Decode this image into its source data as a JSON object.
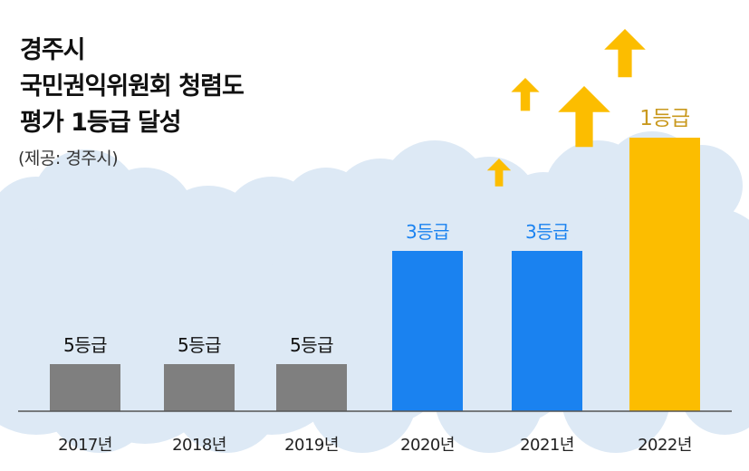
{
  "title_lines": [
    "경주시",
    "국민권익위원회 청렴도",
    "평가 1등급 달성"
  ],
  "source": "(제공: 경주시)",
  "colors": {
    "low": "#7f7f7f",
    "mid": "#1a82f0",
    "top": "#fcbd00",
    "top_label": "#c9991e",
    "arrow": "#fcbd00",
    "cloud": "#dde9f5",
    "axis": "#555555"
  },
  "chart_data": {
    "type": "bar",
    "categories": [
      "2017년",
      "2018년",
      "2019년",
      "2020년",
      "2021년",
      "2022년"
    ],
    "values": [
      5,
      5,
      5,
      3,
      3,
      1
    ],
    "labels": [
      "5등급",
      "5등급",
      "5등급",
      "3등급",
      "3등급",
      "1등급"
    ],
    "value_meaning": "grade (1 = best)",
    "title": "경주시 국민권익위원회 청렴도 평가 1등급 달성",
    "xlabel": "",
    "ylabel": ""
  }
}
